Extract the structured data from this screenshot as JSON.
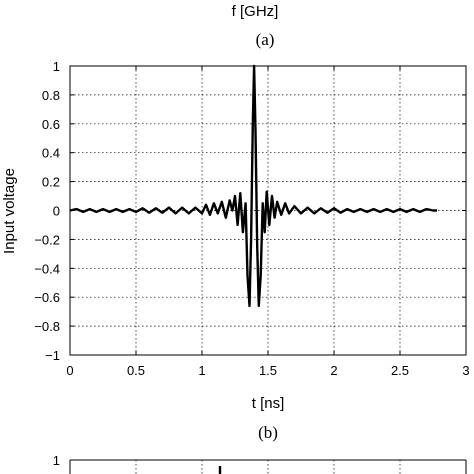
{
  "top_fragment": {
    "xlabel": "f [GHz]",
    "caption": "(a)"
  },
  "chart_data": [
    {
      "type": "line",
      "title": "",
      "xlabel": "t [ns]",
      "ylabel": "Input voltage",
      "caption": "(b)",
      "xlim": [
        0,
        3
      ],
      "ylim": [
        -1,
        1
      ],
      "xticks": [
        0,
        0.5,
        1,
        1.5,
        2,
        2.5,
        3
      ],
      "xtick_labels": [
        "0",
        "0.5",
        "1",
        "1.5",
        "2",
        "2.5",
        "3"
      ],
      "yticks": [
        -1,
        -0.8,
        -0.6,
        -0.4,
        -0.2,
        0,
        0.2,
        0.4,
        0.6,
        0.8,
        1
      ],
      "ytick_labels": [
        "−1",
        "−0.8",
        "−0.6",
        "−0.4",
        "−0.2",
        "0",
        "0.2",
        "0.4",
        "0.6",
        "0.8",
        "1"
      ],
      "grid": true,
      "series": [
        {
          "x": [
            0.0,
            0.05,
            0.1,
            0.15,
            0.2,
            0.25,
            0.3,
            0.35,
            0.4,
            0.45,
            0.5,
            0.55,
            0.6,
            0.65,
            0.7,
            0.75,
            0.8,
            0.85,
            0.9,
            0.95,
            1.0,
            1.03,
            1.06,
            1.09,
            1.12,
            1.15,
            1.18,
            1.21,
            1.23,
            1.25,
            1.27,
            1.29,
            1.31,
            1.33,
            1.345,
            1.36,
            1.372,
            1.385,
            1.395,
            1.405,
            1.418,
            1.43,
            1.445,
            1.46,
            1.475,
            1.49,
            1.51,
            1.53,
            1.55,
            1.57,
            1.6,
            1.63,
            1.66,
            1.7,
            1.75,
            1.8,
            1.85,
            1.9,
            1.95,
            2.0,
            2.05,
            2.1,
            2.15,
            2.2,
            2.25,
            2.3,
            2.35,
            2.4,
            2.45,
            2.5,
            2.55,
            2.6,
            2.65,
            2.7,
            2.75,
            2.78
          ],
          "y": [
            0.0,
            0.01,
            -0.01,
            0.01,
            -0.01,
            0.01,
            -0.01,
            0.01,
            -0.01,
            0.01,
            -0.01,
            0.015,
            -0.015,
            0.015,
            -0.015,
            0.02,
            -0.02,
            0.02,
            -0.02,
            0.02,
            -0.02,
            0.04,
            -0.03,
            0.05,
            -0.02,
            0.06,
            -0.05,
            0.07,
            0.0,
            0.1,
            -0.1,
            0.12,
            -0.15,
            0.05,
            -0.45,
            -0.66,
            -0.2,
            0.6,
            1.0,
            0.55,
            -0.25,
            -0.66,
            -0.45,
            0.05,
            -0.15,
            0.13,
            -0.1,
            0.1,
            -0.05,
            0.06,
            -0.03,
            0.05,
            -0.02,
            0.03,
            -0.02,
            0.02,
            -0.02,
            0.015,
            -0.015,
            0.015,
            -0.015,
            0.01,
            -0.01,
            0.01,
            -0.01,
            0.01,
            -0.01,
            0.01,
            -0.01,
            0.01,
            -0.01,
            0.01,
            -0.01,
            0.01,
            0.0,
            0.0
          ]
        }
      ]
    },
    {
      "type": "line",
      "title": "",
      "partial": true,
      "ylim_top": 1,
      "ytick_labels": [
        "1"
      ],
      "grid": true,
      "series": [
        {
          "x": [
            1.39,
            1.39
          ],
          "y": [
            0.0,
            1.0
          ]
        }
      ]
    }
  ]
}
